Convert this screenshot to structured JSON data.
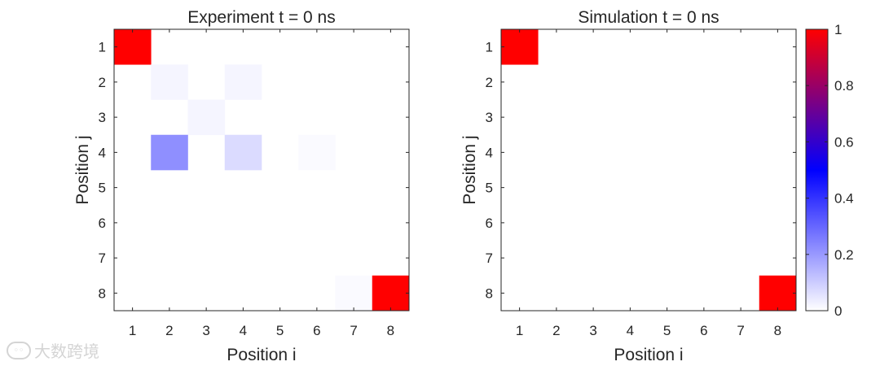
{
  "chart_data": [
    {
      "type": "heatmap",
      "title": "Experiment t = 0 ns",
      "xlabel": "Position i",
      "ylabel": "Position j",
      "x_ticks": [
        "1",
        "2",
        "3",
        "4",
        "5",
        "6",
        "7",
        "8"
      ],
      "y_ticks": [
        "1",
        "2",
        "3",
        "4",
        "5",
        "6",
        "7",
        "8"
      ],
      "xlim": [
        0.5,
        8.5
      ],
      "ylim": [
        0.5,
        8.5
      ],
      "y_direction": "reverse",
      "grid": false,
      "values": [
        [
          1,
          0,
          0,
          0,
          0,
          0,
          0,
          0
        ],
        [
          0,
          0.02,
          0,
          0.02,
          0,
          0,
          0,
          0
        ],
        [
          0,
          0,
          0.02,
          0,
          0,
          0,
          0,
          0
        ],
        [
          0,
          0.22,
          0,
          0.07,
          0,
          0.01,
          0,
          0
        ],
        [
          0,
          0,
          0,
          0,
          0,
          0,
          0,
          0
        ],
        [
          0,
          0,
          0,
          0,
          0,
          0,
          0,
          0
        ],
        [
          0,
          0,
          0,
          0,
          0,
          0,
          0,
          0
        ],
        [
          0,
          0,
          0,
          0,
          0,
          0,
          0.01,
          1
        ]
      ]
    },
    {
      "type": "heatmap",
      "title": "Simulation t = 0 ns",
      "xlabel": "Position i",
      "ylabel": "Position j",
      "x_ticks": [
        "1",
        "2",
        "3",
        "4",
        "5",
        "6",
        "7",
        "8"
      ],
      "y_ticks": [
        "1",
        "2",
        "3",
        "4",
        "5",
        "6",
        "7",
        "8"
      ],
      "xlim": [
        0.5,
        8.5
      ],
      "ylim": [
        0.5,
        8.5
      ],
      "y_direction": "reverse",
      "grid": false,
      "values": [
        [
          1,
          0,
          0,
          0,
          0,
          0,
          0,
          0
        ],
        [
          0,
          0,
          0,
          0,
          0,
          0,
          0,
          0
        ],
        [
          0,
          0,
          0,
          0,
          0,
          0,
          0,
          0
        ],
        [
          0,
          0,
          0,
          0,
          0,
          0,
          0,
          0
        ],
        [
          0,
          0,
          0,
          0,
          0,
          0,
          0,
          0
        ],
        [
          0,
          0,
          0,
          0,
          0,
          0,
          0,
          0
        ],
        [
          0,
          0,
          0,
          0,
          0,
          0,
          0,
          0
        ],
        [
          0,
          0,
          0,
          0,
          0,
          0,
          0,
          1
        ]
      ]
    }
  ],
  "colorbar": {
    "limits": [
      0,
      1
    ],
    "ticks": [
      "0",
      "0.2",
      "0.4",
      "0.6",
      "0.8",
      "1"
    ],
    "tick_values": [
      0,
      0.2,
      0.4,
      0.6,
      0.8,
      1
    ],
    "colormap": [
      "#ffffff",
      "#0000ff",
      "#ff0000"
    ],
    "placement": "right"
  },
  "watermark": {
    "text": "大数跨境"
  }
}
